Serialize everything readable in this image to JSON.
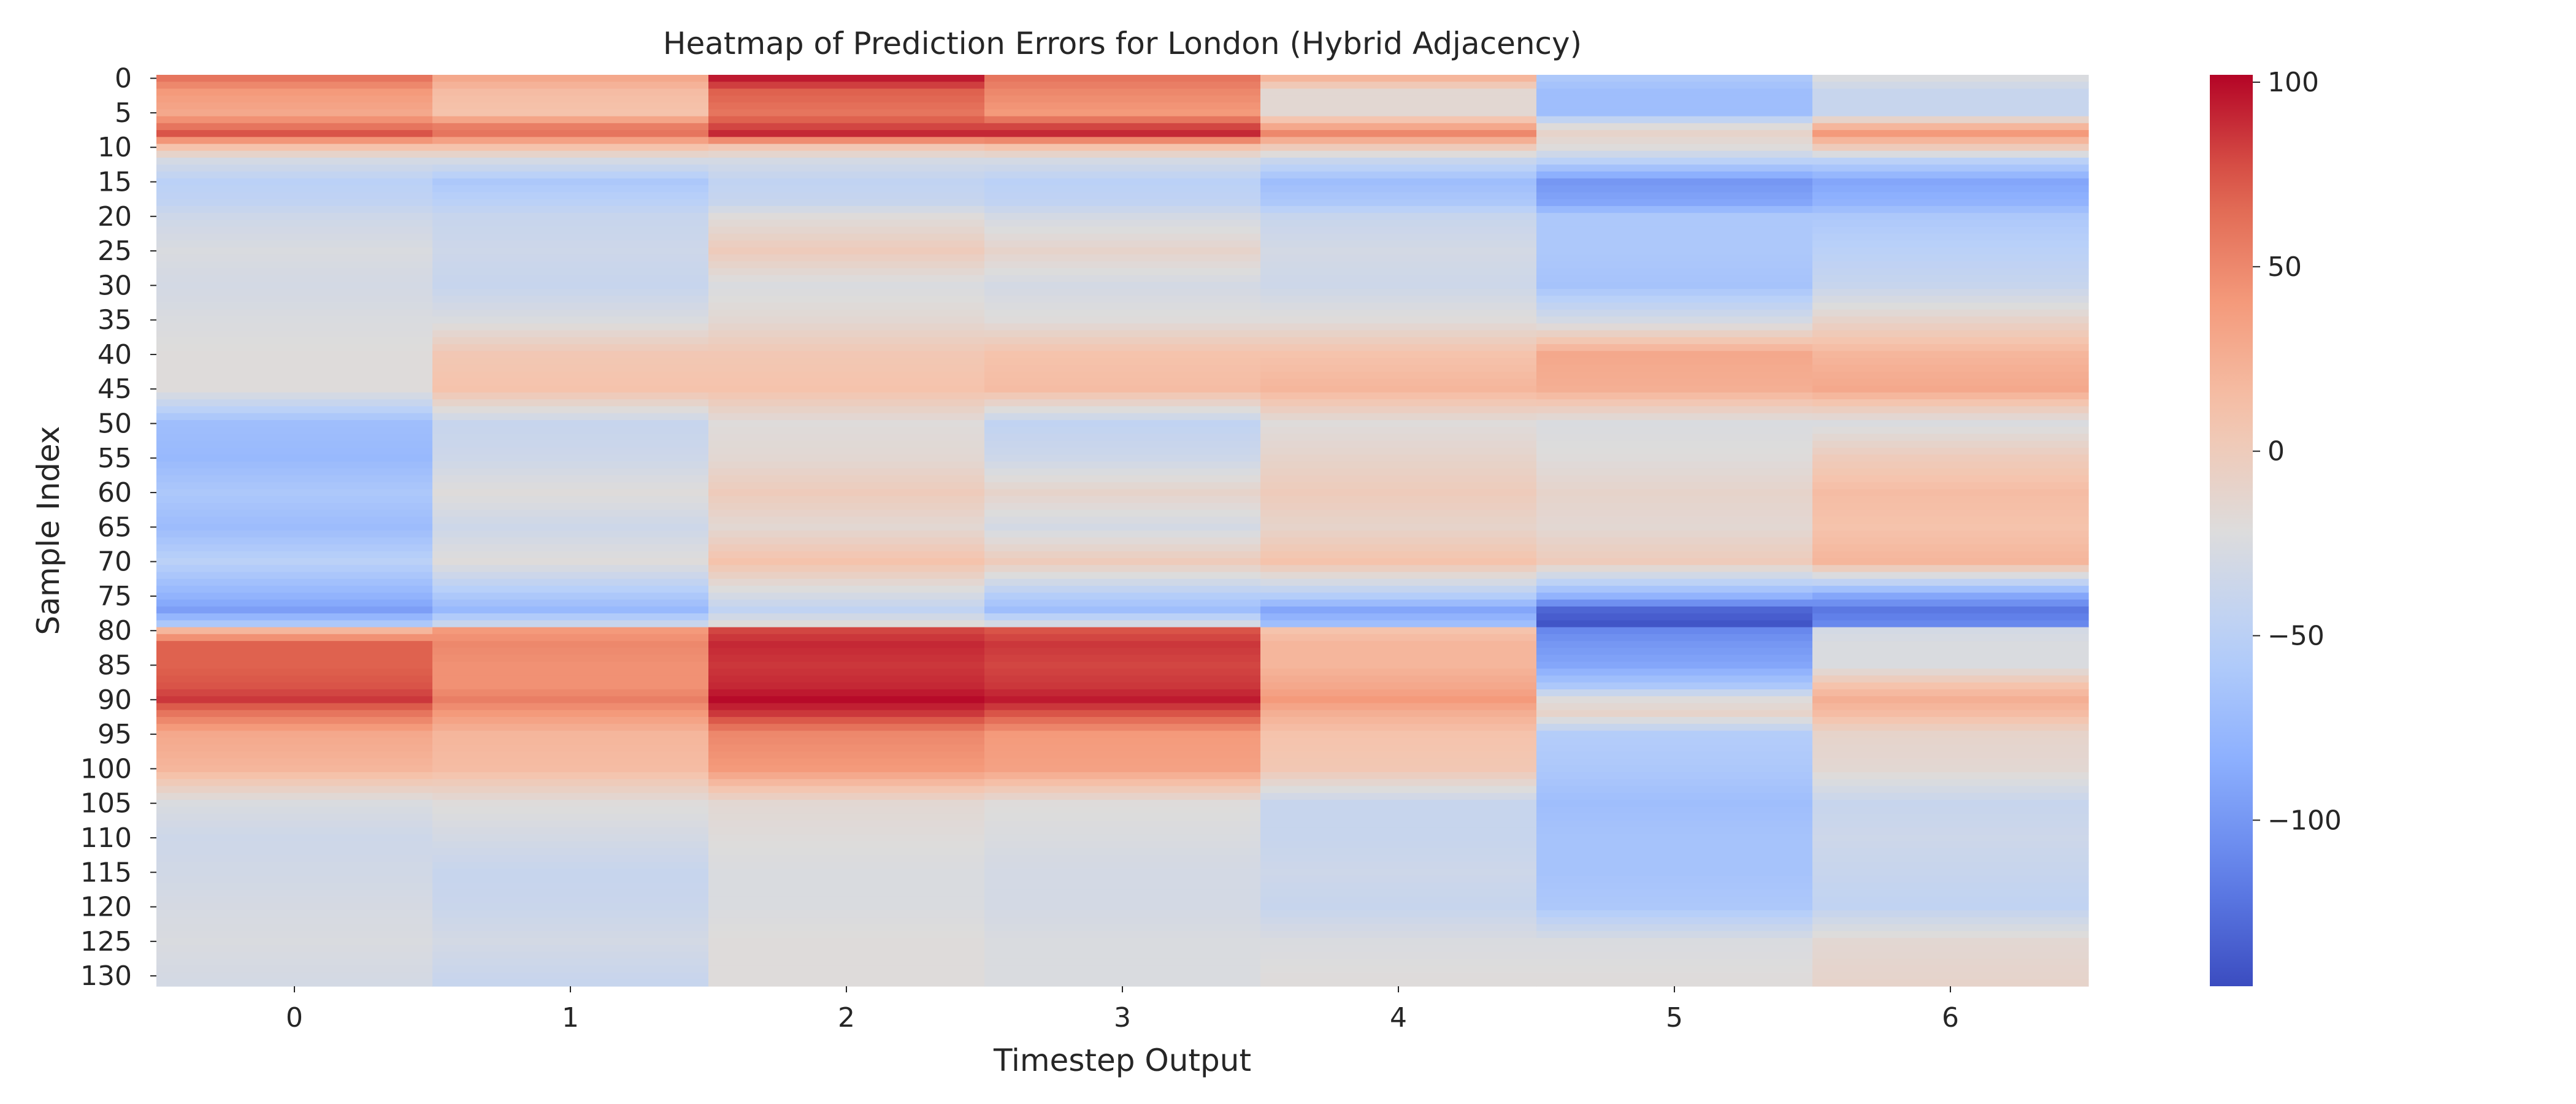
{
  "chart_data": {
    "type": "heatmap",
    "title": "Heatmap of Prediction Errors for London (Hybrid Adjacency)",
    "xlabel": "Timestep Output",
    "ylabel": "Sample Index",
    "x_categories": [
      "0",
      "1",
      "2",
      "3",
      "4",
      "5",
      "6"
    ],
    "y_range": [
      0,
      131
    ],
    "y_ticks": [
      0,
      5,
      10,
      15,
      20,
      25,
      30,
      35,
      40,
      45,
      50,
      55,
      60,
      65,
      70,
      75,
      80,
      85,
      90,
      95,
      100,
      105,
      110,
      115,
      120,
      125,
      130
    ],
    "colormap": "coolwarm",
    "colorbar": {
      "vmin": -145,
      "vmax": 102,
      "ticks": [
        100,
        50,
        0,
        -50,
        -100
      ],
      "tick_labels": [
        "100",
        "50",
        "0",
        "−50",
        "−100"
      ]
    },
    "grid": false,
    "profiles": {
      "note": "Column values estimated at sample-index anchor rows; rows between anchors vary smoothly.",
      "anchor_rows": [
        0,
        2,
        5,
        7,
        8,
        10,
        12,
        15,
        18,
        20,
        25,
        30,
        35,
        40,
        45,
        50,
        55,
        60,
        65,
        70,
        75,
        77,
        79,
        80,
        82,
        85,
        88,
        90,
        92,
        95,
        100,
        105,
        110,
        115,
        120,
        125,
        131
      ],
      "columns": [
        [
          60,
          40,
          30,
          60,
          75,
          10,
          -30,
          -50,
          -45,
          -35,
          -25,
          -30,
          -25,
          -20,
          -20,
          -70,
          -75,
          -60,
          -72,
          -50,
          -80,
          -95,
          -60,
          20,
          70,
          70,
          75,
          85,
          60,
          30,
          20,
          -25,
          -35,
          -32,
          -28,
          -25,
          -30
        ],
        [
          30,
          15,
          10,
          55,
          60,
          10,
          -30,
          -60,
          -50,
          -40,
          -35,
          -40,
          -25,
          5,
          10,
          -40,
          -35,
          -20,
          -35,
          -20,
          -60,
          -75,
          -40,
          40,
          50,
          45,
          45,
          55,
          40,
          20,
          15,
          -20,
          -30,
          -40,
          -38,
          -30,
          -40
        ],
        [
          95,
          70,
          60,
          80,
          90,
          5,
          -30,
          -45,
          -40,
          -20,
          0,
          -25,
          -15,
          5,
          10,
          -20,
          -15,
          0,
          -15,
          10,
          -30,
          -45,
          -20,
          80,
          90,
          85,
          90,
          100,
          85,
          50,
          40,
          -15,
          -20,
          -25,
          -25,
          -20,
          -20
        ],
        [
          60,
          50,
          40,
          80,
          90,
          10,
          -30,
          -50,
          -45,
          -30,
          -10,
          -30,
          -20,
          10,
          15,
          -45,
          -35,
          -10,
          -30,
          0,
          -55,
          -70,
          -30,
          75,
          85,
          80,
          85,
          95,
          75,
          40,
          35,
          -20,
          -25,
          -30,
          -30,
          -25,
          -25
        ],
        [
          20,
          -15,
          -15,
          30,
          50,
          0,
          -40,
          -70,
          -60,
          -40,
          -30,
          -35,
          -20,
          10,
          20,
          -20,
          -10,
          0,
          -10,
          10,
          -55,
          -90,
          -70,
          10,
          20,
          20,
          30,
          40,
          25,
          10,
          5,
          -40,
          -40,
          -35,
          -40,
          -25,
          -20
        ],
        [
          -60,
          -70,
          -70,
          -20,
          -10,
          -20,
          -50,
          -100,
          -90,
          -60,
          -60,
          -65,
          -30,
          30,
          25,
          -25,
          -20,
          -10,
          -15,
          0,
          -80,
          -130,
          -140,
          -110,
          -100,
          -90,
          -60,
          -20,
          -10,
          -55,
          -60,
          -70,
          -65,
          -65,
          -60,
          -25,
          -20
        ],
        [
          -25,
          -40,
          -40,
          20,
          40,
          0,
          -50,
          -90,
          -80,
          -60,
          -50,
          -40,
          -10,
          20,
          30,
          -25,
          0,
          15,
          10,
          20,
          -90,
          -120,
          -110,
          -30,
          -25,
          -25,
          10,
          25,
          15,
          -10,
          -15,
          -40,
          -35,
          -40,
          -45,
          -15,
          -10
        ]
      ]
    }
  }
}
